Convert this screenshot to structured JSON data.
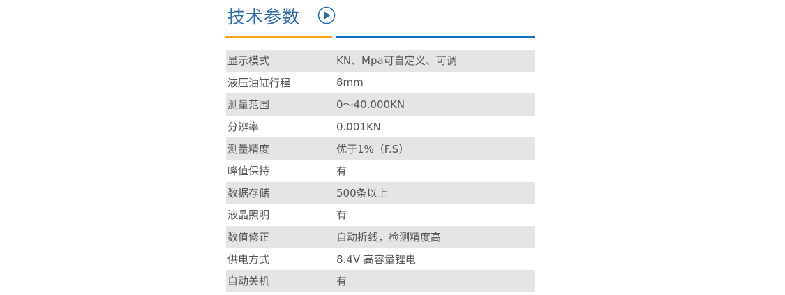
{
  "header": {
    "title": "技术参数",
    "icon": "play-circle-icon",
    "accent_orange": "#f6a31c",
    "accent_blue": "#1170c0"
  },
  "specs": [
    {
      "label": "显示模式",
      "value": "KN、Mpa可自定义、可调"
    },
    {
      "label": "液压油缸行程",
      "value": "8mm"
    },
    {
      "label": "测量范围",
      "value": "0～40.000KN"
    },
    {
      "label": "分辨率",
      "value": "0.001KN"
    },
    {
      "label": "测量精度",
      "value": "优于1%（F.S）"
    },
    {
      "label": "峰值保持",
      "value": "有"
    },
    {
      "label": "数据存储",
      "value": "500条以上"
    },
    {
      "label": "液晶照明",
      "value": "有"
    },
    {
      "label": "数值修正",
      "value": "自动折线，检测精度高"
    },
    {
      "label": "供电方式",
      "value": "8.4V 高容量锂电"
    },
    {
      "label": "自动关机",
      "value": "有"
    }
  ]
}
